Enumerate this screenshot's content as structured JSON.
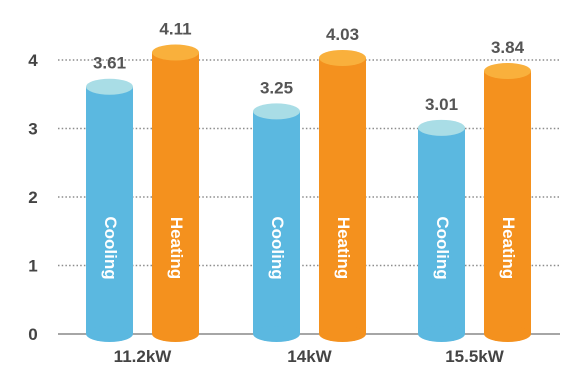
{
  "chart_data": {
    "type": "bar",
    "style": "3d-cylinder",
    "categories": [
      "11.2kW",
      "14kW",
      "15.5kW"
    ],
    "series": [
      {
        "name": "Cooling",
        "values": [
          3.61,
          3.25,
          3.01
        ],
        "color": "#5bb8e0",
        "cap_color": "#a9dde6"
      },
      {
        "name": "Heating",
        "values": [
          4.11,
          4.03,
          3.84
        ],
        "color": "#f4911e",
        "cap_color": "#f9b03c"
      }
    ],
    "yticks": [
      "0",
      "1",
      "2",
      "3",
      "4"
    ],
    "ylim": [
      0,
      4.5
    ],
    "grid": true,
    "legend": "labels inside bars"
  }
}
